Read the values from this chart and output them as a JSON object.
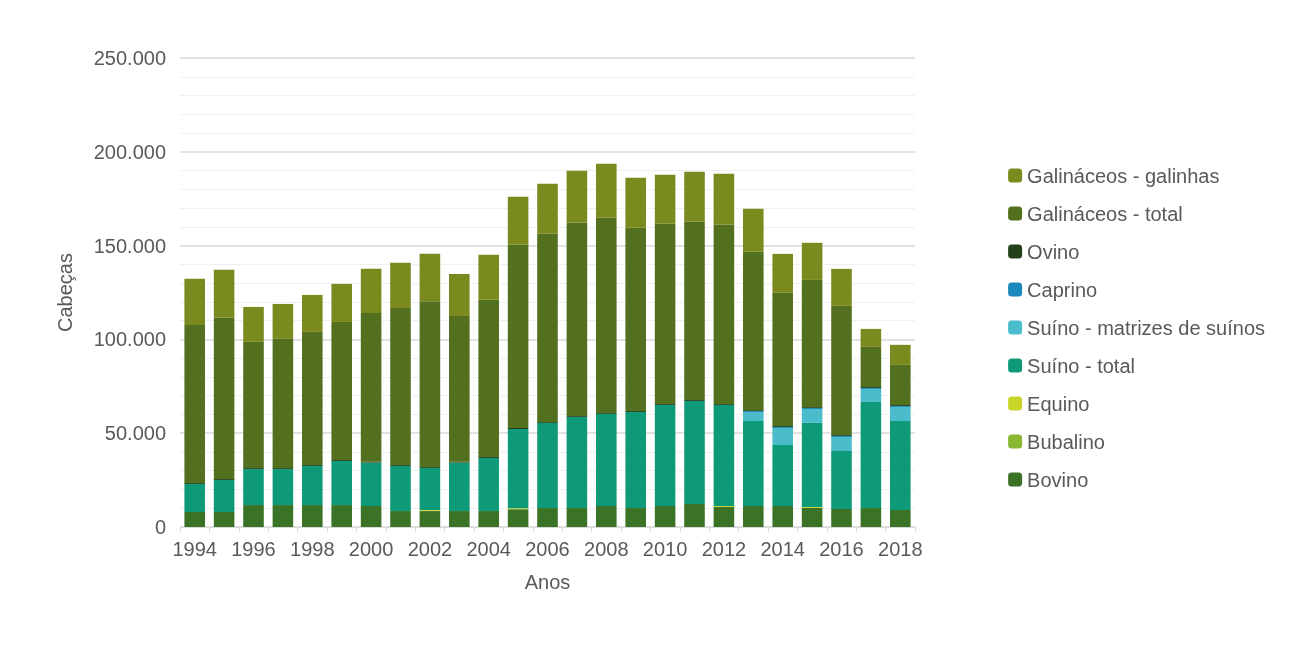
{
  "chart_data": {
    "type": "bar",
    "stacked": true,
    "xlabel": "Anos",
    "ylabel": "Cabeças",
    "categories": [
      "1994",
      null,
      "1996",
      null,
      "1998",
      null,
      "2000",
      null,
      "2002",
      null,
      "2004",
      null,
      "2006",
      null,
      "2008",
      null,
      "2010",
      null,
      "2012",
      null,
      "2014",
      null,
      "2016",
      null,
      "2018"
    ],
    "series": [
      {
        "name": "Bovino",
        "color": "#3a7326",
        "values": [
          8000,
          8000,
          11700,
          11700,
          11700,
          11700,
          11200,
          8500,
          8500,
          8500,
          8500,
          9500,
          10100,
          10100,
          11200,
          10100,
          11200,
          12300,
          10700,
          11200,
          11200,
          10200,
          9600,
          10100,
          9100
        ]
      },
      {
        "name": "Bubalino",
        "color": "#8ab833",
        "values": [
          0,
          0,
          0,
          0,
          0,
          0,
          0,
          0,
          0,
          0,
          0,
          0,
          0,
          0,
          0,
          0,
          0,
          0,
          0,
          0,
          0,
          0,
          0,
          0,
          0
        ]
      },
      {
        "name": "Equino",
        "color": "#c8d42a",
        "values": [
          0,
          0,
          0,
          0,
          0,
          0,
          0,
          0,
          500,
          0,
          0,
          500,
          0,
          0,
          0,
          0,
          0,
          0,
          500,
          0,
          0,
          500,
          0,
          0,
          0
        ]
      },
      {
        "name": "Suíno - total",
        "color": "#0e9a78",
        "values": [
          14900,
          17100,
          19200,
          19200,
          20800,
          23500,
          23100,
          24000,
          22500,
          25800,
          28300,
          42300,
          45400,
          48600,
          49100,
          51200,
          53900,
          54900,
          53900,
          45300,
          32500,
          44800,
          30900,
          56600,
          47400
        ]
      },
      {
        "name": "Suíno - matrizes de suínos",
        "color": "#4bbccc",
        "values": [
          0,
          0,
          0,
          0,
          0,
          0,
          0,
          0,
          0,
          0,
          0,
          0,
          0,
          0,
          0,
          0,
          0,
          0,
          0,
          4800,
          9100,
          7400,
          7500,
          6900,
          7500
        ]
      },
      {
        "name": "Caprino",
        "color": "#1a88b8",
        "values": [
          0,
          0,
          0,
          0,
          0,
          0,
          0,
          0,
          0,
          0,
          0,
          0,
          0,
          0,
          0,
          0,
          0,
          0,
          0,
          500,
          500,
          500,
          500,
          500,
          500
        ]
      },
      {
        "name": "Ovino",
        "color": "#23401a",
        "values": [
          500,
          500,
          500,
          500,
          500,
          500,
          500,
          500,
          500,
          500,
          500,
          500,
          500,
          500,
          500,
          500,
          500,
          500,
          500,
          500,
          500,
          500,
          500,
          500,
          500
        ]
      },
      {
        "name": "Galináceos - total",
        "color": "#53701f",
        "values": [
          84300,
          85900,
          67300,
          68900,
          71000,
          73600,
          79300,
          83800,
          88400,
          77700,
          83800,
          97600,
          100300,
          103000,
          104000,
          97700,
          96000,
          95000,
          95500,
          84400,
          71000,
          67800,
          68900,
          21400,
          21400
        ]
      },
      {
        "name": "Galináceos - galinhas",
        "color": "#7a8a1e",
        "values": [
          24600,
          25600,
          18600,
          18600,
          19700,
          20300,
          23500,
          24000,
          25200,
          22400,
          24000,
          25600,
          26700,
          27700,
          28800,
          26700,
          26200,
          26700,
          27200,
          22900,
          20800,
          19800,
          19700,
          9600,
          10700
        ]
      }
    ],
    "ylim": [
      0,
      250000
    ],
    "yticks": [
      0,
      {
        "value": 50000,
        "label": "50.000"
      },
      {
        "value": 100000,
        "label": "100.000"
      },
      {
        "value": 150000,
        "label": "150.000"
      },
      {
        "value": 200000,
        "label": "200.000"
      },
      {
        "value": 250000,
        "label": "250.000"
      }
    ],
    "grid": "y",
    "legend": "right"
  }
}
